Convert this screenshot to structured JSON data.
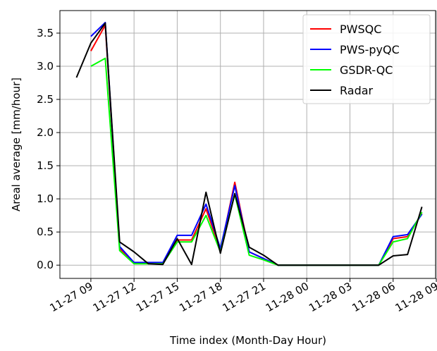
{
  "chart_data": {
    "type": "line",
    "xlabel": "Time index (Month-Day Hour)",
    "ylabel": "Areal average [mm/hour]",
    "x": [
      8,
      9,
      10,
      11,
      12,
      13,
      14,
      15,
      16,
      17,
      18,
      19,
      20,
      21,
      22,
      23,
      24,
      25,
      26,
      27,
      28,
      29,
      30,
      31,
      32
    ],
    "series": [
      {
        "name": "PWSQC",
        "color": "#ff0000",
        "values": [
          null,
          3.23,
          3.62,
          0.25,
          0.04,
          0.03,
          0.03,
          0.38,
          0.38,
          0.85,
          0.22,
          1.25,
          0.2,
          0.1,
          0,
          0,
          0,
          0,
          0,
          0,
          0,
          0,
          0.4,
          0.43,
          0.78
        ]
      },
      {
        "name": "PWS-pyQC",
        "color": "#0000ff",
        "values": [
          null,
          3.45,
          3.66,
          0.28,
          0.04,
          0.04,
          0.04,
          0.45,
          0.45,
          0.92,
          0.25,
          1.2,
          0.2,
          0.1,
          0,
          0,
          0,
          0,
          0,
          0,
          0,
          0,
          0.43,
          0.46,
          0.77
        ]
      },
      {
        "name": "GSDR-QC",
        "color": "#00ff00",
        "values": [
          null,
          3.0,
          3.12,
          0.22,
          0.02,
          0.02,
          0.02,
          0.35,
          0.35,
          0.75,
          0.2,
          1.07,
          0.15,
          0.08,
          0,
          0,
          0,
          0,
          0,
          0,
          0,
          0,
          0.35,
          0.4,
          0.8
        ]
      },
      {
        "name": "Radar",
        "color": "#000000",
        "values": [
          2.83,
          3.35,
          3.65,
          0.35,
          0.2,
          0.02,
          0.01,
          0.4,
          0.01,
          1.1,
          0.18,
          1.08,
          0.27,
          0.15,
          0,
          0,
          0,
          0,
          0,
          0,
          0,
          0,
          0.14,
          0.16,
          0.88
        ]
      }
    ],
    "xlim": [
      6.85,
      32.95
    ],
    "xticks": [
      {
        "value": 9,
        "label": "11-27 09"
      },
      {
        "value": 12,
        "label": "11-27 12"
      },
      {
        "value": 15,
        "label": "11-27 15"
      },
      {
        "value": 18,
        "label": "11-27 18"
      },
      {
        "value": 21,
        "label": "11-27 21"
      },
      {
        "value": 24,
        "label": "11-28 00"
      },
      {
        "value": 27,
        "label": "11-28 03"
      },
      {
        "value": 30,
        "label": "11-28 06"
      },
      {
        "value": 33,
        "label": "11-28 09"
      }
    ],
    "ylim": [
      -0.2,
      3.84
    ],
    "yticks": [
      {
        "value": 0,
        "label": "0.0"
      },
      0.5,
      {
        "value": 1,
        "label": "1.0"
      },
      1.5,
      {
        "value": 2,
        "label": "2.0"
      },
      2.5,
      {
        "value": 3,
        "label": "3.0"
      },
      3.5
    ],
    "grid": true,
    "legend": "upper right"
  }
}
